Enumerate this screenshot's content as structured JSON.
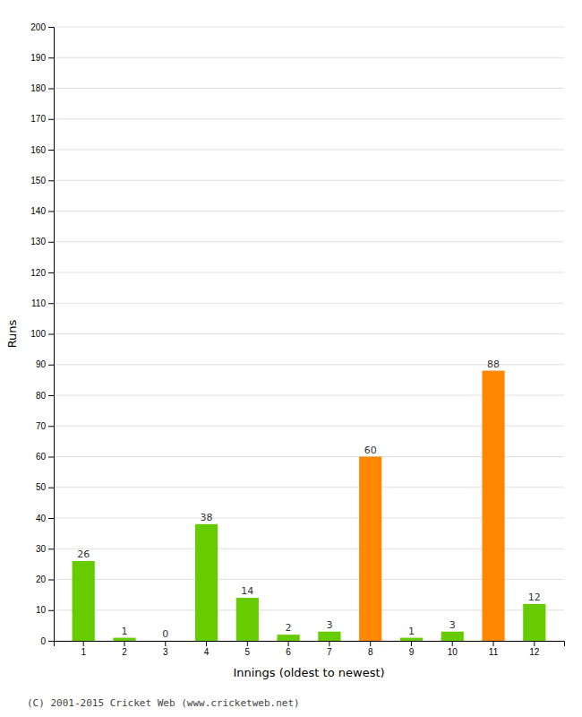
{
  "chart_data": {
    "type": "bar",
    "xlabel": "Innings (oldest to newest)",
    "ylabel": "Runs",
    "categories": [
      1,
      2,
      3,
      4,
      5,
      6,
      7,
      8,
      9,
      10,
      11,
      12
    ],
    "values": [
      26,
      1,
      0,
      38,
      14,
      2,
      3,
      60,
      1,
      3,
      88,
      12
    ],
    "colors": [
      "#66cc00",
      "#66cc00",
      "#66cc00",
      "#66cc00",
      "#66cc00",
      "#66cc00",
      "#66cc00",
      "#ff8800",
      "#66cc00",
      "#66cc00",
      "#ff8800",
      "#66cc00"
    ],
    "ylim": [
      0,
      200
    ],
    "yticks": [
      0,
      10,
      20,
      30,
      40,
      50,
      60,
      70,
      80,
      90,
      100,
      110,
      120,
      130,
      140,
      150,
      160,
      170,
      180,
      190,
      200
    ],
    "grid": true,
    "data_labels": true,
    "annotations": [
      "(C) 2001-2015 Cricket Web (www.cricketweb.net)"
    ]
  }
}
